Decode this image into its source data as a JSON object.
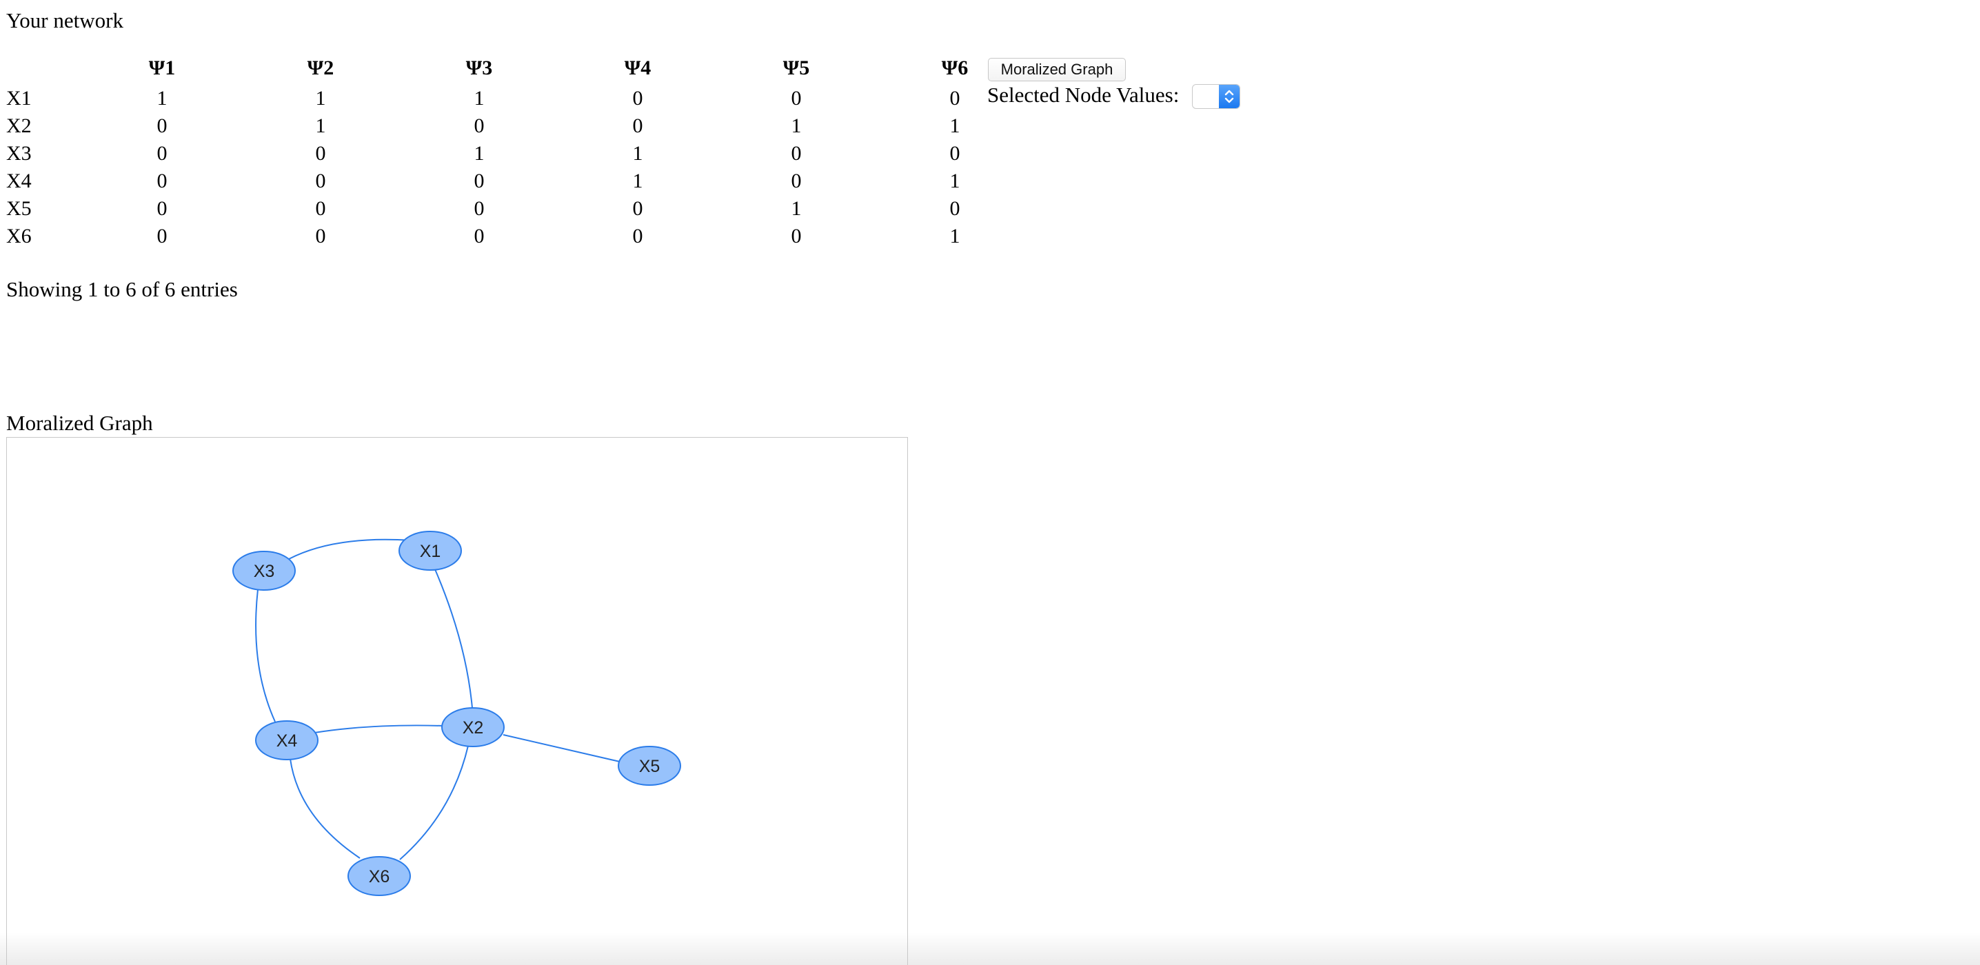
{
  "header": {
    "title": "Your network"
  },
  "matrix": {
    "columns": [
      "Ψ1",
      "Ψ2",
      "Ψ3",
      "Ψ4",
      "Ψ5",
      "Ψ6"
    ],
    "rows": [
      {
        "label": "X1",
        "values": [
          "1",
          "1",
          "1",
          "0",
          "0",
          "0"
        ]
      },
      {
        "label": "X2",
        "values": [
          "0",
          "1",
          "0",
          "0",
          "1",
          "1"
        ]
      },
      {
        "label": "X3",
        "values": [
          "0",
          "0",
          "1",
          "1",
          "0",
          "0"
        ]
      },
      {
        "label": "X4",
        "values": [
          "0",
          "0",
          "0",
          "1",
          "0",
          "1"
        ]
      },
      {
        "label": "X5",
        "values": [
          "0",
          "0",
          "0",
          "0",
          "1",
          "0"
        ]
      },
      {
        "label": "X6",
        "values": [
          "0",
          "0",
          "0",
          "0",
          "0",
          "1"
        ]
      }
    ],
    "footer": "Showing 1 to 6 of 6 entries"
  },
  "controls": {
    "moralize_button": "Moralized Graph",
    "selected_node_label": "Selected Node Values:",
    "selected_node_value": "",
    "select_accent": "#1b79f0"
  },
  "graph": {
    "title": "Moralized Graph",
    "node_fill": "#97c2fc",
    "node_border": "#2b7ce9",
    "edge_color": "#2b7ce9",
    "nodes": [
      "X1",
      "X2",
      "X3",
      "X4",
      "X5",
      "X6"
    ],
    "edges": [
      [
        "X3",
        "X1"
      ],
      [
        "X1",
        "X2"
      ],
      [
        "X3",
        "X4"
      ],
      [
        "X4",
        "X2"
      ],
      [
        "X2",
        "X5"
      ],
      [
        "X4",
        "X6"
      ],
      [
        "X2",
        "X6"
      ]
    ]
  }
}
